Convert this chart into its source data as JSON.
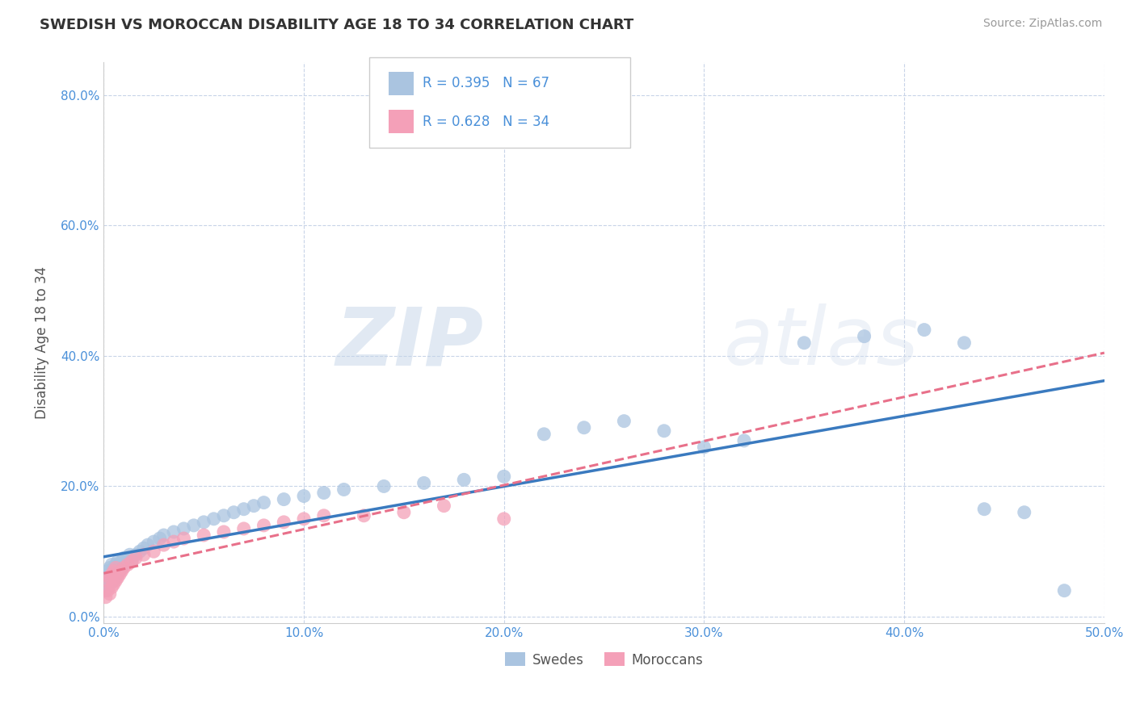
{
  "title": "SWEDISH VS MOROCCAN DISABILITY AGE 18 TO 34 CORRELATION CHART",
  "source": "Source: ZipAtlas.com",
  "xlim": [
    0.0,
    0.5
  ],
  "ylim": [
    -0.01,
    0.85
  ],
  "swedish_R": 0.395,
  "swedish_N": 67,
  "moroccan_R": 0.628,
  "moroccan_N": 34,
  "swedish_color": "#aac4e0",
  "moroccan_color": "#f4a0b8",
  "swedish_line_color": "#3a7abf",
  "moroccan_line_color": "#e8708a",
  "watermark_zip": "ZIP",
  "watermark_atlas": "atlas",
  "background_color": "#ffffff",
  "grid_color": "#c8d4e8",
  "swedes_x": [
    0.001,
    0.001,
    0.002,
    0.002,
    0.002,
    0.003,
    0.003,
    0.003,
    0.004,
    0.004,
    0.004,
    0.005,
    0.005,
    0.005,
    0.006,
    0.006,
    0.007,
    0.007,
    0.007,
    0.008,
    0.008,
    0.009,
    0.009,
    0.01,
    0.01,
    0.011,
    0.012,
    0.013,
    0.014,
    0.016,
    0.018,
    0.02,
    0.022,
    0.025,
    0.028,
    0.03,
    0.035,
    0.04,
    0.045,
    0.05,
    0.055,
    0.06,
    0.065,
    0.07,
    0.075,
    0.08,
    0.09,
    0.1,
    0.11,
    0.12,
    0.14,
    0.16,
    0.18,
    0.2,
    0.22,
    0.24,
    0.26,
    0.28,
    0.3,
    0.32,
    0.35,
    0.38,
    0.41,
    0.43,
    0.44,
    0.46,
    0.48
  ],
  "swedes_y": [
    0.04,
    0.055,
    0.045,
    0.06,
    0.07,
    0.05,
    0.065,
    0.075,
    0.06,
    0.07,
    0.08,
    0.055,
    0.065,
    0.075,
    0.07,
    0.08,
    0.065,
    0.075,
    0.085,
    0.07,
    0.08,
    0.075,
    0.085,
    0.08,
    0.09,
    0.085,
    0.09,
    0.095,
    0.085,
    0.095,
    0.1,
    0.105,
    0.11,
    0.115,
    0.12,
    0.125,
    0.13,
    0.135,
    0.14,
    0.145,
    0.15,
    0.155,
    0.16,
    0.165,
    0.17,
    0.175,
    0.18,
    0.185,
    0.19,
    0.195,
    0.2,
    0.205,
    0.21,
    0.215,
    0.28,
    0.29,
    0.3,
    0.285,
    0.26,
    0.27,
    0.42,
    0.43,
    0.44,
    0.42,
    0.165,
    0.16,
    0.04
  ],
  "moroccans_x": [
    0.001,
    0.002,
    0.002,
    0.003,
    0.003,
    0.004,
    0.004,
    0.005,
    0.005,
    0.006,
    0.006,
    0.007,
    0.008,
    0.009,
    0.01,
    0.012,
    0.014,
    0.016,
    0.02,
    0.025,
    0.03,
    0.035,
    0.04,
    0.05,
    0.06,
    0.07,
    0.08,
    0.09,
    0.1,
    0.11,
    0.13,
    0.15,
    0.17,
    0.2
  ],
  "moroccans_y": [
    0.03,
    0.04,
    0.055,
    0.035,
    0.06,
    0.045,
    0.065,
    0.05,
    0.07,
    0.055,
    0.075,
    0.06,
    0.065,
    0.07,
    0.075,
    0.08,
    0.085,
    0.09,
    0.095,
    0.1,
    0.11,
    0.115,
    0.12,
    0.125,
    0.13,
    0.135,
    0.14,
    0.145,
    0.15,
    0.155,
    0.155,
    0.16,
    0.17,
    0.15
  ],
  "title_fontsize": 13,
  "tick_fontsize": 11,
  "label_fontsize": 12
}
